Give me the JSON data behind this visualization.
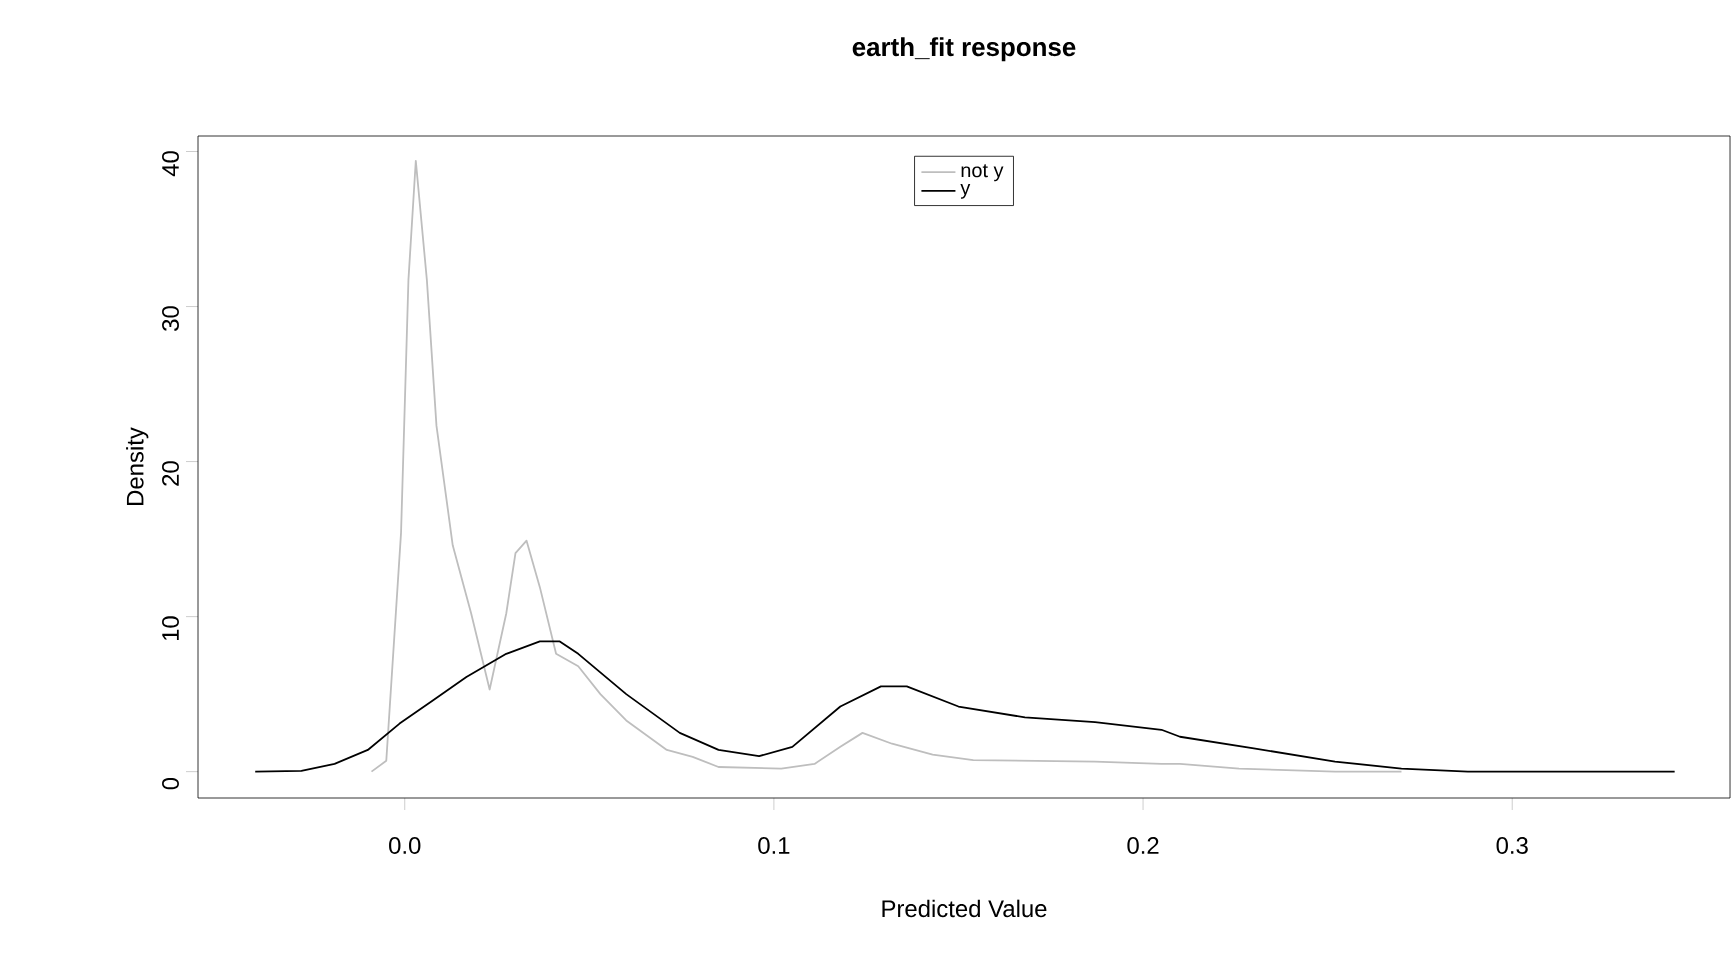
{
  "chart_data": {
    "type": "line",
    "title": "earth_fit response",
    "xlabel": "Predicted Value",
    "ylabel": "Density",
    "xlim": [
      -0.056,
      0.359
    ],
    "ylim": [
      -1.7,
      41
    ],
    "xticks": [
      {
        "value": 0,
        "label": "0.0"
      },
      0.1,
      0.2,
      0.3
    ],
    "yticks": [
      0,
      10,
      20,
      30,
      40
    ],
    "grid": false,
    "legend": "top",
    "line_style": "solid",
    "marker": "none",
    "series": [
      {
        "name": "not y",
        "color": "#bebebe",
        "x": [
          -0.009,
          -0.005,
          -0.001,
          0.001,
          0.003,
          0.006,
          0.0086,
          0.013,
          0.018,
          0.023,
          0.0275,
          0.03,
          0.033,
          0.0366,
          0.041,
          0.047,
          0.053,
          0.06,
          0.071,
          0.078,
          0.085,
          0.102,
          0.111,
          0.118,
          0.124,
          0.132,
          0.143,
          0.154,
          0.187,
          0.205,
          0.21,
          0.226,
          0.252,
          0.27
        ],
        "values": [
          0,
          0.7,
          15.4,
          31.7,
          39.4,
          31.7,
          22.3,
          14.6,
          10.2,
          5.3,
          10.2,
          14.1,
          14.9,
          11.9,
          7.6,
          6.8,
          5.0,
          3.3,
          1.4,
          0.95,
          0.3,
          0.2,
          0.5,
          1.6,
          2.5,
          1.8,
          1.1,
          0.74,
          0.65,
          0.5,
          0.5,
          0.2,
          0,
          0
        ]
      },
      {
        "name": "y",
        "color": "#000000",
        "x": [
          -0.0405,
          -0.028,
          -0.019,
          -0.01,
          -0.0014,
          0.0077,
          0.0167,
          0.0275,
          0.0366,
          0.042,
          0.047,
          0.06,
          0.0745,
          0.085,
          0.096,
          0.105,
          0.118,
          0.129,
          0.136,
          0.15,
          0.168,
          0.187,
          0.205,
          0.21,
          0.23,
          0.252,
          0.27,
          0.288,
          0.344
        ],
        "values": [
          0,
          0.05,
          0.5,
          1.4,
          3.1,
          4.6,
          6.1,
          7.6,
          8.4,
          8.4,
          7.6,
          5.0,
          2.5,
          1.4,
          1.0,
          1.6,
          4.2,
          5.5,
          5.5,
          4.2,
          3.5,
          3.2,
          2.7,
          2.25,
          1.5,
          0.65,
          0.2,
          0,
          0
        ]
      }
    ]
  }
}
